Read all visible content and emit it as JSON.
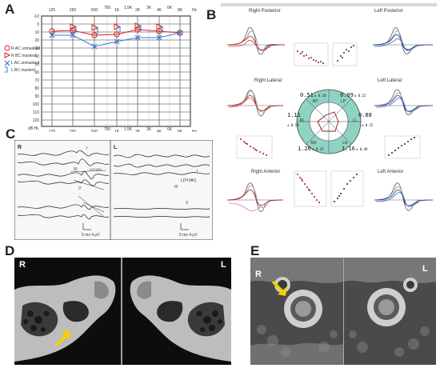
{
  "panels": {
    "a": "A",
    "b": "B",
    "c": "C",
    "d": "D",
    "e": "E"
  },
  "audiogram": {
    "freq_top": [
      "125",
      "250",
      "500",
      "750",
      "1K",
      "1.5K",
      "2K",
      "3K",
      "4K",
      "6K",
      "8K",
      "Hz"
    ],
    "freq_bottom": [
      "125",
      "250",
      "500",
      "750",
      "1K",
      "1.5K",
      "2K",
      "3K",
      "4K",
      "6K",
      "8K",
      "Hz"
    ],
    "db_ticks": [
      "-10",
      "0",
      "10",
      "20",
      "30",
      "40",
      "50",
      "60",
      "70",
      "80",
      "90",
      "100",
      "110",
      "120"
    ],
    "db_unit": "dB HL",
    "legend": [
      "R AC unmasked",
      "R BC masked",
      "L AC unmasked",
      "L BC masked"
    ],
    "colors": {
      "right": "#e02020",
      "left": "#3a78d8"
    }
  },
  "vemp": {
    "titles": {
      "rp": "Right Posterior",
      "lp": "Left Posterior",
      "rl": "Right Lateral",
      "ll": "Left Lateral",
      "ra": "Right Anterior",
      "la": "Left Anterior"
    },
    "dial": {
      "rp_val": "0.51",
      "rp_sd": "± 0.18",
      "lp_val": "0.99",
      "lp_sd": "± 0.22",
      "rl_val": "1.11",
      "rl_sd": "± 0.19",
      "ll_val": "0.88",
      "ll_sd": "± 0.15",
      "ra_val": "1.26",
      "ra_sd": "± 0.23",
      "la_val": "1.16",
      "la_sd": "± 0.49",
      "rp": "RP",
      "lp": "LP",
      "rl": "RL",
      "ll": "LL",
      "ra": "RA",
      "la": "LA"
    }
  },
  "abr": {
    "side_r": "R",
    "side_l": "L",
    "waves": [
      "I",
      "III",
      "V",
      "I",
      "III",
      "V"
    ],
    "marks": [
      "LDY(4K)",
      "LDY(4K)"
    ],
    "scale_r": "5 ms    4 μV",
    "scale_l": "5 ms    4 μV"
  },
  "ct_d": {
    "left": "R",
    "right": "L"
  },
  "ct_e": {
    "left": "R",
    "right": "L"
  }
}
